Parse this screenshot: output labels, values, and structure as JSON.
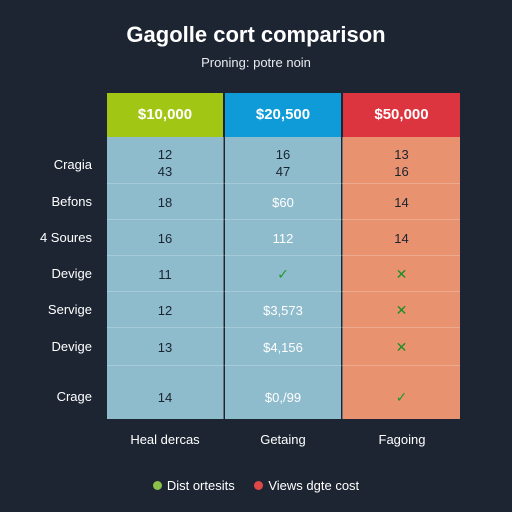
{
  "title": "Gagolle cort comparison",
  "subtitle": "Proning: potre noin",
  "columns": [
    {
      "header": "$10,000",
      "header_color": "#a2c614",
      "body_color": "#8fbccd"
    },
    {
      "header": "$20,500",
      "header_color": "#0f9bd8",
      "body_color": "#8fbccd"
    },
    {
      "header": "$50,000",
      "header_color": "#dd3540",
      "body_color": "#e99270"
    }
  ],
  "rows": [
    {
      "label": "Cragia",
      "cells": [
        "12\n43",
        "16\n47",
        "13\n16"
      ]
    },
    {
      "label": "Befons",
      "cells": [
        "18",
        "$60",
        "14"
      ]
    },
    {
      "label": "4 Soures",
      "cells": [
        "16",
        "112",
        "14"
      ]
    },
    {
      "label": "Devige",
      "cells": [
        "11",
        "✓",
        "✕"
      ]
    },
    {
      "label": "Servige",
      "cells": [
        "12",
        "$3,573",
        "✕"
      ]
    },
    {
      "label": "Devige",
      "cells": [
        "13",
        "$4,156",
        "✕"
      ]
    },
    {
      "label": "Crage",
      "cells": [
        "14",
        "$0,/99",
        "✓"
      ]
    }
  ],
  "footer": [
    "Heal dercas",
    "Getaing",
    "Fagoing"
  ],
  "legend": [
    {
      "label": "Dist ortesits",
      "color": "#8bc34a"
    },
    {
      "label": "Views dgte cost",
      "color": "#e04848"
    }
  ]
}
